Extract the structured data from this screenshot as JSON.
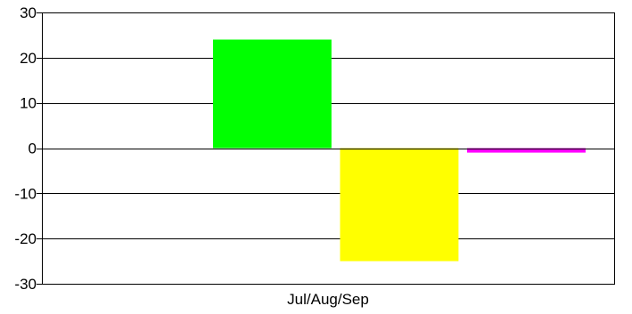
{
  "chart_data": {
    "type": "bar",
    "title": "",
    "xlabel": "",
    "ylabel": "",
    "categories": [
      "Jul/Aug/Sep"
    ],
    "ylim": [
      -30,
      30
    ],
    "yticks": [
      30,
      20,
      10,
      0,
      -10,
      -20,
      -30
    ],
    "grid": true,
    "legend": "none",
    "series": [
      {
        "values": [
          24
        ],
        "color": "#00ff00"
      },
      {
        "values": [
          -25
        ],
        "color": "#ffff00"
      },
      {
        "values": [
          -1
        ],
        "color": "#ff00ff"
      }
    ]
  }
}
